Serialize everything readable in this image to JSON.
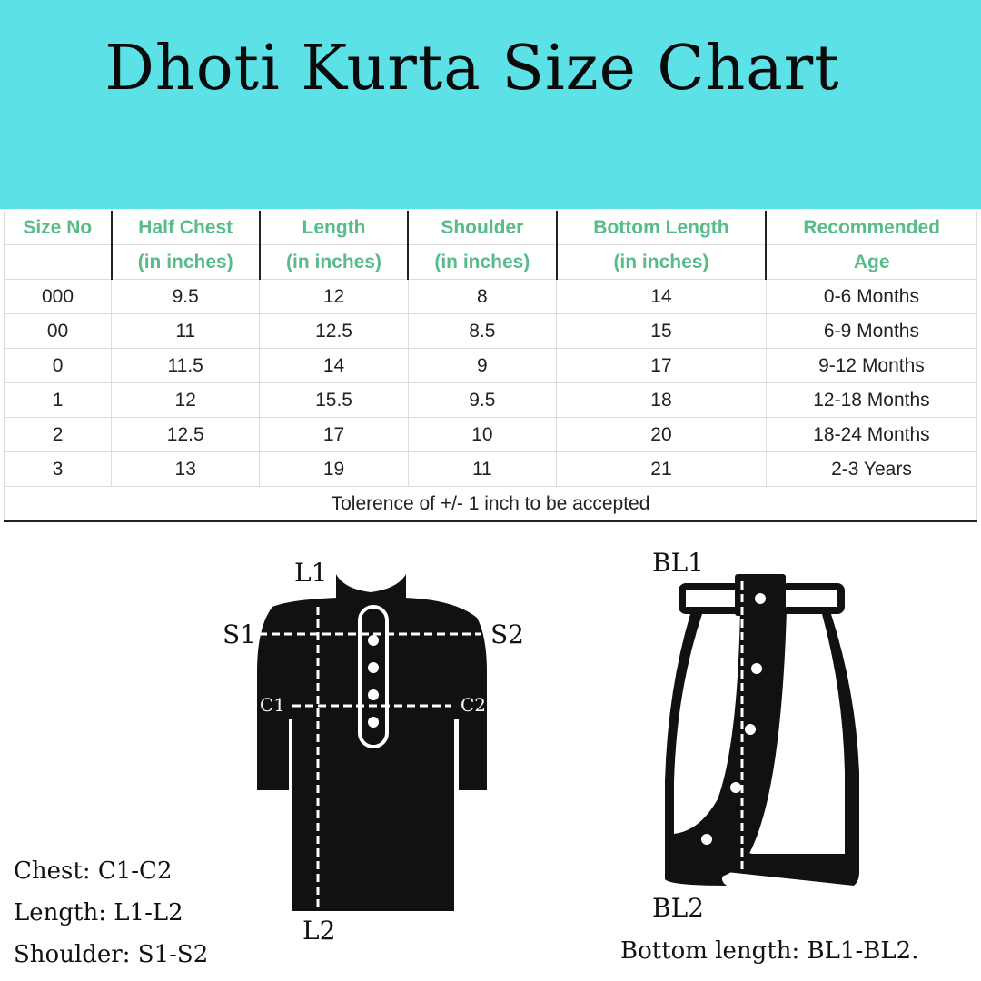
{
  "title": "Dhoti Kurta Size Chart",
  "colors": {
    "banner": "#5ce1e6",
    "header_text": "#57bb8a"
  },
  "table": {
    "headers": [
      [
        "Size No",
        ""
      ],
      [
        "Half Chest",
        "(in inches)"
      ],
      [
        "Length",
        "(in inches)"
      ],
      [
        "Shoulder",
        "(in inches)"
      ],
      [
        "Bottom Length",
        "(in inches)"
      ],
      [
        "Recommended",
        "Age"
      ]
    ],
    "rows": [
      [
        "000",
        "9.5",
        "12",
        "8",
        "14",
        "0-6 Months"
      ],
      [
        "00",
        "11",
        "12.5",
        "8.5",
        "15",
        "6-9 Months"
      ],
      [
        "0",
        "11.5",
        "14",
        "9",
        "17",
        "9-12 Months"
      ],
      [
        "1",
        "12",
        "15.5",
        "9.5",
        "18",
        "12-18 Months"
      ],
      [
        "2",
        "12.5",
        "17",
        "10",
        "20",
        "18-24 Months"
      ],
      [
        "3",
        "13",
        "19",
        "11",
        "21",
        "2-3 Years"
      ]
    ],
    "footer": "Tolerence of +/- 1 inch to be accepted"
  },
  "kurta_labels": {
    "l1": "L1",
    "l2": "L2",
    "s1": "S1",
    "s2": "S2",
    "c1": "C1",
    "c2": "C2"
  },
  "dhoti_labels": {
    "bl1": "BL1",
    "bl2": "BL2"
  },
  "notes": {
    "chest": "Chest: C1-C2",
    "length": "Length: L1-L2",
    "shoulder": "Shoulder: S1-S2",
    "bottom": "Bottom length: BL1-BL2."
  }
}
